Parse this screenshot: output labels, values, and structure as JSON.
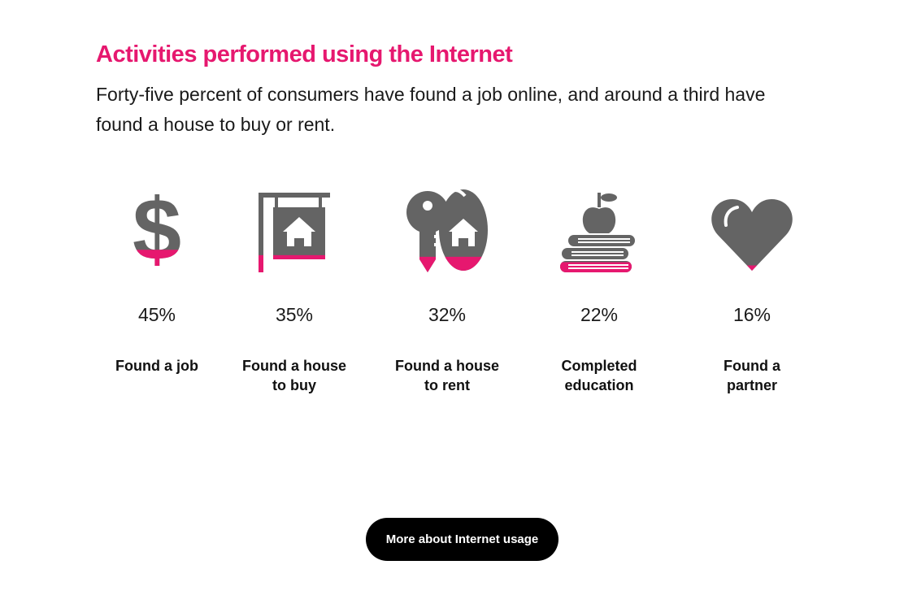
{
  "heading": {
    "title": "Activities performed using the Internet",
    "subtitle": "Forty-five percent of consumers have found a job online, and around a third have found a house to buy or rent."
  },
  "colors": {
    "accent": "#e6186f",
    "icon_gray": "#646464",
    "button_bg": "#000000"
  },
  "chart_data": {
    "type": "bar",
    "categories": [
      "Found a job",
      "Found a house to buy",
      "Found a house to rent",
      "Completed education",
      "Found a partner"
    ],
    "values": [
      45,
      35,
      32,
      22,
      16
    ],
    "unit": "%",
    "value_labels": [
      "45%",
      "35%",
      "32%",
      "22%",
      "16%"
    ],
    "label_lines": [
      [
        "Found a job"
      ],
      [
        "Found a house",
        "to buy"
      ],
      [
        "Found a house",
        "to rent"
      ],
      [
        "Completed",
        "education"
      ],
      [
        "Found a",
        "partner"
      ]
    ],
    "icons": [
      "dollar-sign-icon",
      "house-sign-icon",
      "keys-house-icon",
      "books-apple-icon",
      "heart-icon"
    ]
  },
  "cta": {
    "label": "More about Internet usage"
  }
}
